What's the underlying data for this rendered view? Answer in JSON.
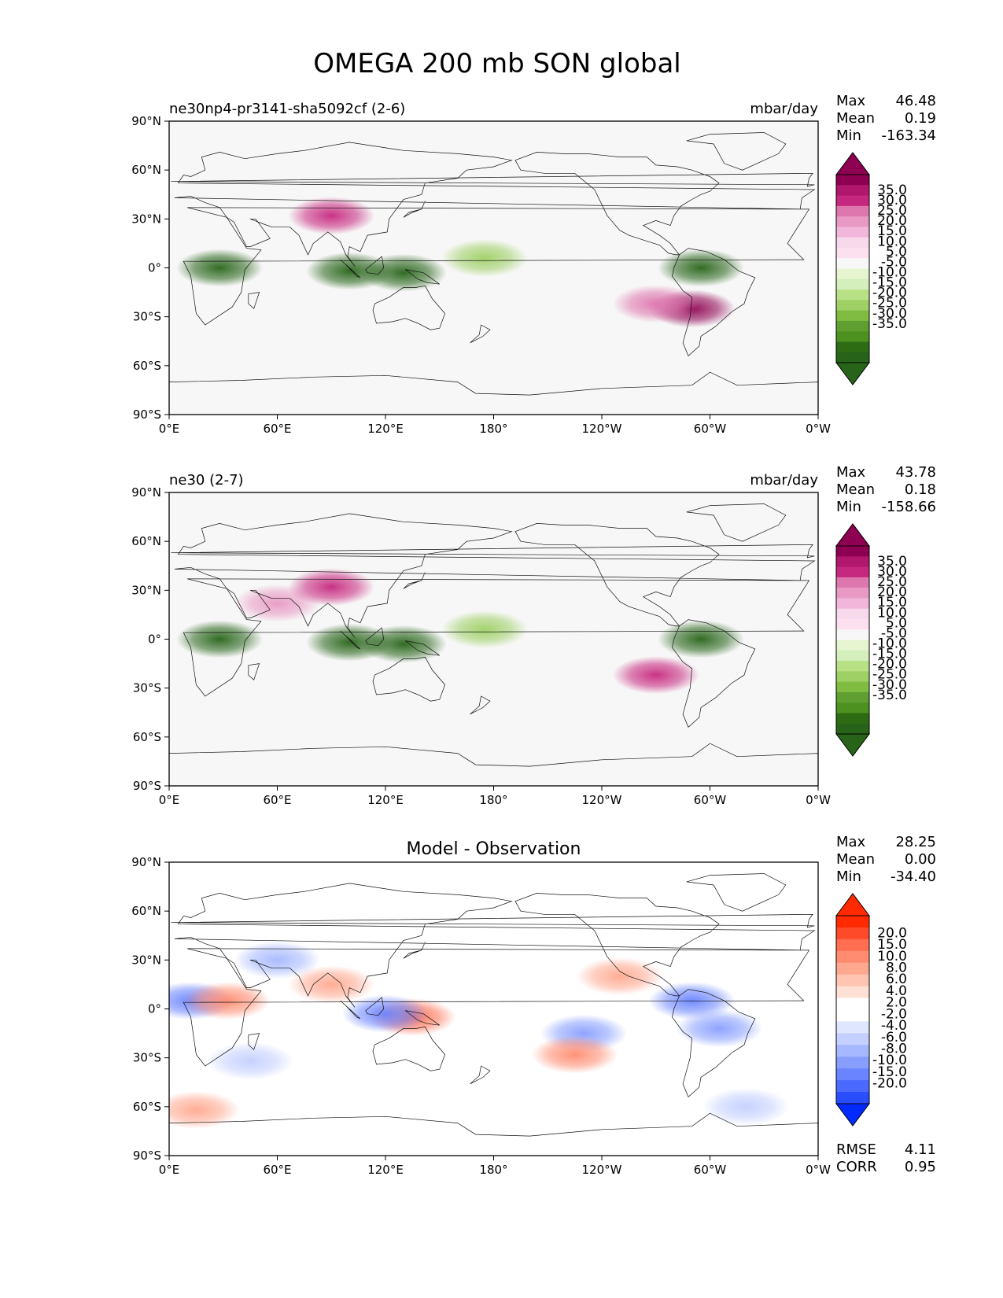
{
  "title": "OMEGA 200 mb SON global",
  "chart_data": [
    {
      "type": "heatmap",
      "title_left": "ne30np4-pr3141-sha5092cf (2-6)",
      "title_center": "",
      "units": "mbar/day",
      "stats": {
        "max": "46.48",
        "mean": "0.19",
        "min": "-163.34"
      },
      "stat_labels": {
        "max": "Max",
        "mean": "Mean",
        "min": "Min"
      },
      "colorbar": {
        "labels": [
          "35.0",
          "30.0",
          "25.0",
          "20.0",
          "15.0",
          "10.0",
          "5.0",
          "-5.0",
          "-10.0",
          "-15.0",
          "-20.0",
          "-25.0",
          "-30.0",
          "-35.0"
        ],
        "colors": [
          "#8e0152",
          "#b0176d",
          "#c7287f",
          "#de77ae",
          "#e89ac4",
          "#f1b6da",
          "#f8d8eb",
          "#fde0ef",
          "#f7f7f7",
          "#e6f5d0",
          "#d4eebc",
          "#b8e186",
          "#9fd066",
          "#7fbc41",
          "#5f9f31",
          "#4d9221",
          "#2d6c13",
          "#276419"
        ],
        "ext_max": "#8e0152",
        "ext_min": "#276419"
      },
      "xticks": [
        "0°E",
        "60°E",
        "120°E",
        "180°",
        "120°W",
        "60°W",
        "0°W"
      ],
      "yticks": [
        "90°N",
        "60°N",
        "30°N",
        "0°",
        "30°S",
        "60°S",
        "90°S"
      ],
      "xlim": [
        0,
        360
      ],
      "ylim": [
        -90,
        90
      ],
      "field": [
        {
          "lon": 28,
          "lat": 0,
          "value": -60
        },
        {
          "lon": 100,
          "lat": -2,
          "value": -40
        },
        {
          "lon": 130,
          "lat": -3,
          "value": -35
        },
        {
          "lon": 175,
          "lat": 6,
          "value": -25
        },
        {
          "lon": 295,
          "lat": 0,
          "value": -55
        },
        {
          "lon": 290,
          "lat": -25,
          "value": 35
        },
        {
          "lon": 270,
          "lat": -22,
          "value": 25
        },
        {
          "lon": 90,
          "lat": 32,
          "value": 30
        }
      ]
    },
    {
      "type": "heatmap",
      "title_left": "ne30 (2-7)",
      "title_center": "",
      "units": "mbar/day",
      "stats": {
        "max": "43.78",
        "mean": "0.18",
        "min": "-158.66"
      },
      "stat_labels": {
        "max": "Max",
        "mean": "Mean",
        "min": "Min"
      },
      "colorbar": {
        "labels": [
          "35.0",
          "30.0",
          "25.0",
          "20.0",
          "15.0",
          "10.0",
          "5.0",
          "-5.0",
          "-10.0",
          "-15.0",
          "-20.0",
          "-25.0",
          "-30.0",
          "-35.0"
        ],
        "colors": [
          "#8e0152",
          "#b0176d",
          "#c7287f",
          "#de77ae",
          "#e89ac4",
          "#f1b6da",
          "#f8d8eb",
          "#fde0ef",
          "#f7f7f7",
          "#e6f5d0",
          "#d4eebc",
          "#b8e186",
          "#9fd066",
          "#7fbc41",
          "#5f9f31",
          "#4d9221",
          "#2d6c13",
          "#276419"
        ],
        "ext_max": "#8e0152",
        "ext_min": "#276419"
      },
      "xticks": [
        "0°E",
        "60°E",
        "120°E",
        "180°",
        "120°W",
        "60°W",
        "0°W"
      ],
      "yticks": [
        "90°N",
        "60°N",
        "30°N",
        "0°",
        "30°S",
        "60°S",
        "90°S"
      ],
      "xlim": [
        0,
        360
      ],
      "ylim": [
        -90,
        90
      ],
      "field": [
        {
          "lon": 28,
          "lat": 0,
          "value": -60
        },
        {
          "lon": 100,
          "lat": -2,
          "value": -40
        },
        {
          "lon": 130,
          "lat": -3,
          "value": -35
        },
        {
          "lon": 175,
          "lat": 6,
          "value": -25
        },
        {
          "lon": 295,
          "lat": 0,
          "value": -55
        },
        {
          "lon": 270,
          "lat": -22,
          "value": 30
        },
        {
          "lon": 60,
          "lat": 22,
          "value": 20
        },
        {
          "lon": 90,
          "lat": 32,
          "value": 30
        }
      ]
    },
    {
      "type": "heatmap",
      "title_left": "",
      "title_center": "Model - Observation",
      "units": "",
      "stats": {
        "max": "28.25",
        "mean": "0.00",
        "min": "-34.40"
      },
      "stat_labels": {
        "max": "Max",
        "mean": "Mean",
        "min": "Min"
      },
      "rmse_label": "RMSE",
      "rmse": "4.11",
      "corr_label": "CORR",
      "corr": "0.95",
      "colorbar": {
        "labels": [
          "20.0",
          "15.0",
          "10.0",
          "8.0",
          "6.0",
          "4.0",
          "2.0",
          "-2.0",
          "-4.0",
          "-6.0",
          "-8.0",
          "-10.0",
          "-15.0",
          "-20.0"
        ],
        "colors": [
          "#ff2a00",
          "#ff4a2a",
          "#ff6e50",
          "#ff8c70",
          "#ffa890",
          "#ffc4b2",
          "#ffe0d4",
          "#ffffff",
          "#ffffff",
          "#dfe6ff",
          "#c4d0ff",
          "#a6b8ff",
          "#889eff",
          "#6a84ff",
          "#4a6aff",
          "#2a4eff"
        ],
        "ext_max": "#ff2a00",
        "ext_min": "#002aff"
      },
      "xticks": [
        "0°E",
        "60°E",
        "120°E",
        "180°",
        "120°W",
        "60°W",
        "0°W"
      ],
      "yticks": [
        "90°N",
        "60°N",
        "30°N",
        "0°",
        "30°S",
        "60°S",
        "90°S"
      ],
      "xlim": [
        0,
        360
      ],
      "ylim": [
        -90,
        90
      ],
      "field": [
        {
          "lon": 12,
          "lat": 5,
          "value": -12
        },
        {
          "lon": 32,
          "lat": 5,
          "value": 12
        },
        {
          "lon": 135,
          "lat": -5,
          "value": 15
        },
        {
          "lon": 120,
          "lat": -3,
          "value": -12
        },
        {
          "lon": 230,
          "lat": -15,
          "value": -10
        },
        {
          "lon": 225,
          "lat": -28,
          "value": 10
        },
        {
          "lon": 290,
          "lat": 5,
          "value": -12
        },
        {
          "lon": 305,
          "lat": -12,
          "value": -10
        },
        {
          "lon": 60,
          "lat": 30,
          "value": -8
        },
        {
          "lon": 90,
          "lat": 15,
          "value": 8
        },
        {
          "lon": 250,
          "lat": 20,
          "value": 8
        },
        {
          "lon": 15,
          "lat": -62,
          "value": 8
        },
        {
          "lon": 320,
          "lat": -60,
          "value": -6
        },
        {
          "lon": 45,
          "lat": -32,
          "value": -6
        }
      ]
    }
  ]
}
